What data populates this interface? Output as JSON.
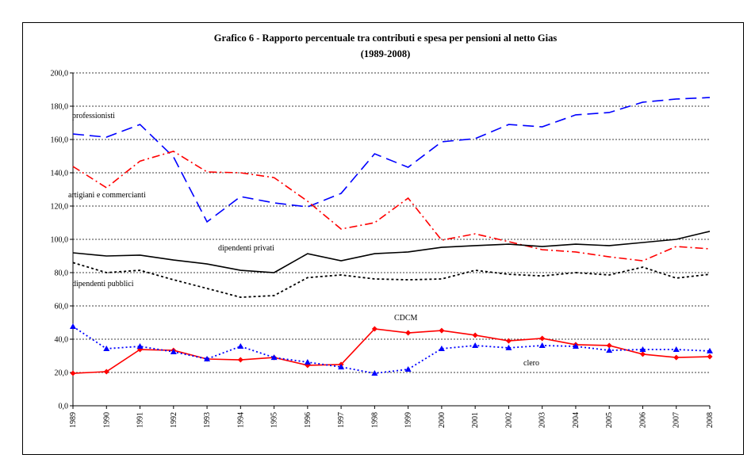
{
  "chart_data": {
    "type": "line",
    "title": "Grafico 6 - Rapporto percentuale tra contributi e spesa per pensioni  al netto Gias",
    "subtitle": "(1989-2008)",
    "categories": [
      "1989",
      "1990",
      "1991",
      "1992",
      "1993",
      "1994",
      "1995",
      "1996",
      "1997",
      "1998",
      "1999",
      "2000",
      "2001",
      "2002",
      "2003",
      "2004",
      "2005",
      "2006",
      "2007",
      "2008"
    ],
    "ylim": [
      0,
      200
    ],
    "yticks": [
      {
        "value": 0,
        "label": "0,0"
      },
      {
        "value": 20,
        "label": "20,0"
      },
      {
        "value": 40,
        "label": "40,0"
      },
      {
        "value": 60,
        "label": "60,0"
      },
      {
        "value": 80,
        "label": "80,0"
      },
      {
        "value": 100,
        "label": "100,0"
      },
      {
        "value": 120,
        "label": "120,0"
      },
      {
        "value": 140,
        "label": "140,0"
      },
      {
        "value": 160,
        "label": "160,0"
      },
      {
        "value": 180,
        "label": "180,0"
      },
      {
        "value": 200,
        "label": "200,0"
      }
    ],
    "grid": true,
    "series": [
      {
        "name": "professionisti",
        "color": "#0000ff",
        "values": [
          163.3,
          161.4,
          169,
          149.5,
          110.5,
          125.7,
          121.9,
          119.5,
          127.6,
          151.4,
          143.3,
          158.6,
          160.5,
          169,
          167.6,
          174.8,
          176.2,
          182.4,
          184.3,
          185.2
        ]
      },
      {
        "name": "artigiani e commercianti",
        "color": "#ff0000",
        "values": [
          143.8,
          131,
          147,
          152.9,
          140.5,
          140,
          137.1,
          122.9,
          106.2,
          110,
          124.8,
          99.5,
          103.3,
          98.6,
          93.8,
          92.4,
          89.5,
          87.1,
          95.7,
          94.3
        ]
      },
      {
        "name": "dipendenti privati",
        "color": "#000000",
        "values": [
          91.9,
          90,
          90.5,
          87.6,
          85.2,
          81.4,
          80,
          91.4,
          87.1,
          91.4,
          92.4,
          95.2,
          96.2,
          97.1,
          95.7,
          97.1,
          96.2,
          98.1,
          100,
          104.8
        ]
      },
      {
        "name": "dipendenti pubblici",
        "color": "#000000",
        "values": [
          86,
          80,
          81.4,
          75.7,
          70.5,
          65.2,
          66.2,
          77,
          78.6,
          76.2,
          75.7,
          76.2,
          81.4,
          79,
          78,
          80,
          78.6,
          83.3,
          76.7,
          79
        ]
      },
      {
        "name": "CDCM",
        "color": "#ff0000",
        "marker": "diamond",
        "values": [
          19.5,
          20.5,
          33.8,
          33.3,
          28.1,
          27.6,
          29,
          24.3,
          24.8,
          46.2,
          43.8,
          45.2,
          42.4,
          39,
          40.5,
          36.7,
          36.2,
          31,
          29,
          29.5
        ]
      },
      {
        "name": "clero",
        "color": "#0000ff",
        "marker": "triangle",
        "values": [
          47.6,
          34.3,
          35.7,
          32.4,
          28.1,
          35.7,
          29,
          26.2,
          23.3,
          19.5,
          21.9,
          34.3,
          36.2,
          34.8,
          36.2,
          35.7,
          33.3,
          33.8,
          33.8,
          32.9
        ]
      }
    ]
  }
}
